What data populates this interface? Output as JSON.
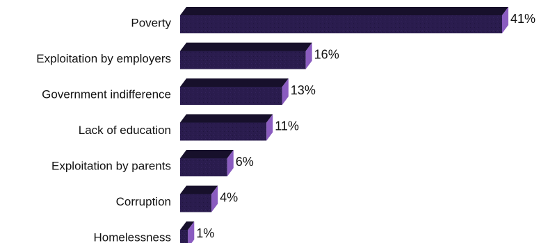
{
  "chart_data": {
    "type": "bar",
    "orientation": "horizontal",
    "categories": [
      "Poverty",
      "Exploitation by employers",
      "Government indifference",
      "Lack of education",
      "Exploitation by parents",
      "Corruption",
      "Homelessness"
    ],
    "values": [
      41,
      16,
      13,
      11,
      6,
      4,
      1
    ],
    "value_labels": [
      "41%",
      "16%",
      "13%",
      "11%",
      "6%",
      "4%",
      "1%"
    ],
    "unit": "%",
    "xlim": [
      0,
      41
    ],
    "grid": false,
    "legend": "none",
    "colors": {
      "bar_front": "#2a1c4e",
      "bar_top": "#17102b",
      "bar_side": "#8a5cc0",
      "text": "#111111"
    }
  }
}
